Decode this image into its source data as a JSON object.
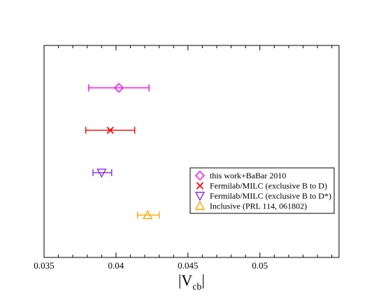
{
  "chart_data": {
    "type": "scatter",
    "title": "",
    "xlabel": "|V",
    "xlabel_subscript": "cb",
    "xlabel_suffix": "|",
    "ylabel": "",
    "xlim": [
      0.035,
      0.0555
    ],
    "ylim": [
      0,
      5
    ],
    "grid": false,
    "legend_position": "right",
    "x_ticks": [
      {
        "value": 0.035,
        "label": "0.035"
      },
      {
        "value": 0.04,
        "label": "0.04"
      },
      {
        "value": 0.045,
        "label": "0.045"
      },
      {
        "value": 0.05,
        "label": "0.05"
      }
    ],
    "series": [
      {
        "name": "this work+BaBar 2010",
        "x": 0.0402,
        "err_low": 0.0381,
        "err_high": 0.0423,
        "y": 4,
        "marker": "diamond",
        "color": "#ff00ff"
      },
      {
        "name": "Fermilab/MILC (exclusive B to D)",
        "x": 0.0396,
        "err_low": 0.0379,
        "err_high": 0.0413,
        "y": 3,
        "marker": "x",
        "color": "#ff0000"
      },
      {
        "name": "Fermilab/MILC (exclusive B to D*)",
        "x": 0.039,
        "err_low": 0.0384,
        "err_high": 0.0397,
        "y": 2,
        "marker": "triangle-down",
        "color": "#8a2be2"
      },
      {
        "name": "Inclusive (PRL 114, 061802)",
        "x": 0.0422,
        "err_low": 0.0415,
        "err_high": 0.043,
        "y": 1,
        "marker": "triangle-up",
        "color": "#ffa500"
      }
    ]
  }
}
